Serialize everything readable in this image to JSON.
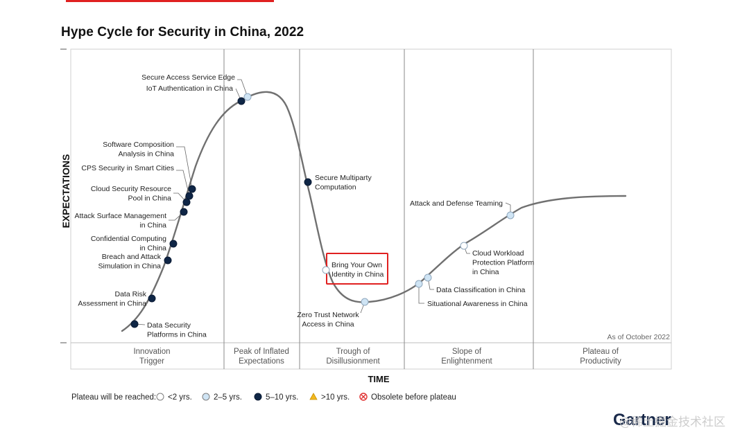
{
  "colors": {
    "curve": "#707070",
    "lt2": "#ffffff",
    "y2to5": "#cfe4f4",
    "y5to10": "#0f2646",
    "gt10": "#f2b81e",
    "obsolete": "#e03030",
    "highlight": "#e02020",
    "grid": "#8a8a8a",
    "gartner": "#1a2a4a"
  },
  "page": {
    "title": "Hype Cycle for Security in China, 2022",
    "brand": "Gartner",
    "watermark": "@稀土掘金技术社区"
  },
  "chart_data": {
    "type": "hype-cycle",
    "title": "Hype Cycle for Security in China, 2022",
    "xlabel": "TIME",
    "ylabel": "EXPECTATIONS",
    "as_of": "As of October 2022",
    "phases": [
      "Innovation Trigger",
      "Peak of Inflated Expectations",
      "Trough of Disillusionment",
      "Slope of Enlightenment",
      "Plateau of Productivity"
    ],
    "legend": {
      "title": "Plateau will be reached:",
      "items": [
        {
          "key": "lt2",
          "label": "<2 yrs."
        },
        {
          "key": "2to5",
          "label": "2–5 yrs."
        },
        {
          "key": "5to10",
          "label": "5–10 yrs."
        },
        {
          "key": "gt10",
          "label": ">10 yrs."
        },
        {
          "key": "obsolete",
          "label": "Obsolete before plateau"
        }
      ]
    },
    "technologies": [
      {
        "name": "Data Security Platforms in China",
        "phase": "Innovation Trigger",
        "plateau": "5to10"
      },
      {
        "name": "Data Risk Assessment in China",
        "phase": "Innovation Trigger",
        "plateau": "5to10"
      },
      {
        "name": "Breach and Attack Simulation in China",
        "phase": "Innovation Trigger",
        "plateau": "5to10"
      },
      {
        "name": "Confidential Computing in China",
        "phase": "Innovation Trigger",
        "plateau": "5to10"
      },
      {
        "name": "Attack Surface Management in China",
        "phase": "Innovation Trigger",
        "plateau": "5to10"
      },
      {
        "name": "Cloud Security Resource Pool in China",
        "phase": "Innovation Trigger",
        "plateau": "5to10"
      },
      {
        "name": "CPS Security in Smart Cities",
        "phase": "Innovation Trigger",
        "plateau": "5to10"
      },
      {
        "name": "Software Composition Analysis in China",
        "phase": "Innovation Trigger",
        "plateau": "5to10"
      },
      {
        "name": "IoT Authentication in China",
        "phase": "Peak of Inflated Expectations",
        "plateau": "5to10"
      },
      {
        "name": "Secure Access Service Edge",
        "phase": "Peak of Inflated Expectations",
        "plateau": "2to5"
      },
      {
        "name": "Secure Multiparty Computation",
        "phase": "Trough of Disillusionment",
        "plateau": "5to10"
      },
      {
        "name": "Bring Your Own Identity in China",
        "phase": "Trough of Disillusionment",
        "plateau": "lt2",
        "highlighted": true
      },
      {
        "name": "Zero Trust Network Access in China",
        "phase": "Trough of Disillusionment",
        "plateau": "2to5"
      },
      {
        "name": "Situational Awareness in China",
        "phase": "Slope of Enlightenment",
        "plateau": "2to5"
      },
      {
        "name": "Data Classification in China",
        "phase": "Slope of Enlightenment",
        "plateau": "2to5"
      },
      {
        "name": "Cloud Workload Protection Platform in China",
        "phase": "Slope of Enlightenment",
        "plateau": "lt2"
      },
      {
        "name": "Attack and Defense Teaming",
        "phase": "Slope of Enlightenment",
        "plateau": "2to5"
      }
    ],
    "label_lines": {
      "Data Security Platforms in China": [
        "Data Security",
        "Platforms in China"
      ],
      "Data Risk Assessment in China": [
        "Data Risk",
        "Assessment in China"
      ],
      "Breach and Attack Simulation in China": [
        "Breach and Attack",
        "Simulation in China"
      ],
      "Confidential Computing in China": [
        "Confidential Computing",
        "in China"
      ],
      "Attack Surface Management in China": [
        "Attack Surface Management",
        "in China"
      ],
      "Cloud Security Resource Pool in China": [
        "Cloud Security Resource",
        "Pool in China"
      ],
      "CPS Security in Smart Cities": [
        "CPS Security in Smart Cities"
      ],
      "Software Composition Analysis in China": [
        "Software Composition",
        "Analysis in China"
      ],
      "IoT Authentication in China": [
        "IoT Authentication in China"
      ],
      "Secure Access Service Edge": [
        "Secure Access Service Edge"
      ],
      "Secure Multiparty Computation": [
        "Secure Multiparty",
        "Computation"
      ],
      "Bring Your Own Identity in China": [
        "Bring Your Own",
        "Identity in China"
      ],
      "Zero Trust Network Access in China": [
        "Zero Trust Network",
        "Access in China"
      ],
      "Situational Awareness in China": [
        "Situational Awareness in China"
      ],
      "Data Classification in China": [
        "Data Classification in China"
      ],
      "Cloud Workload Protection Platform in China": [
        "Cloud Workload",
        "Protection Platform",
        "in China"
      ],
      "Attack and Defense Teaming": [
        "Attack and Defense Teaming"
      ]
    },
    "phase_lines": [
      [
        "Innovation",
        "Trigger"
      ],
      [
        "Peak of Inflated",
        "Expectations"
      ],
      [
        "Trough of",
        "Disillusionment"
      ],
      [
        "Slope of",
        "Enlightenment"
      ],
      [
        "Plateau of",
        "Productivity"
      ]
    ]
  }
}
